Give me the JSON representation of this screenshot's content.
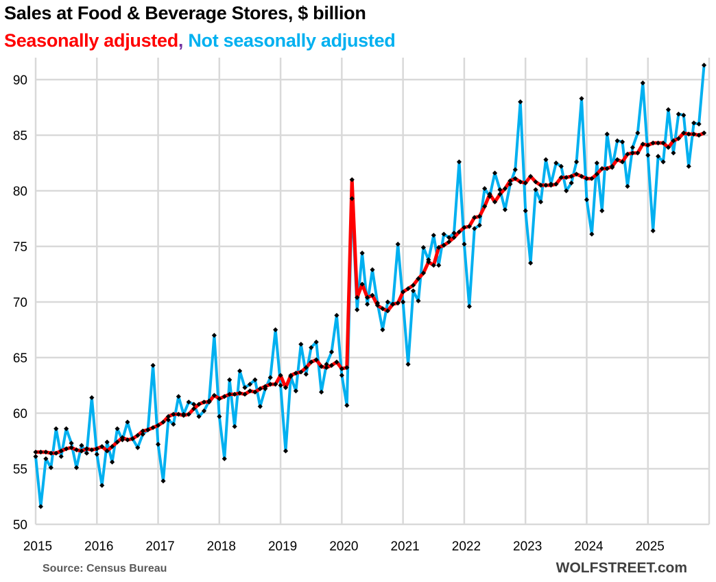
{
  "header": {
    "title": "Sales at Food & Beverage Stores, $ billion",
    "subtitle_sa": "Seasonally adjusted",
    "subtitle_comma": ",",
    "subtitle_nsa": "Not seasonally adjusted"
  },
  "footer": {
    "source": "Source: Census Bureau",
    "brand": "WOLFSTREET.com"
  },
  "colors": {
    "seasonally_adjusted": "#ff0000",
    "not_seasonally_adjusted": "#00b0f0",
    "markers": "#000000",
    "grid": "#d9d9d9"
  },
  "chart_data": {
    "type": "line",
    "title": "Sales at Food & Beverage Stores, $ billion",
    "xlabel": "",
    "ylabel": "$ billion",
    "ylim": [
      50,
      92
    ],
    "yticks": [
      50,
      55,
      60,
      65,
      70,
      75,
      80,
      85,
      90
    ],
    "xticks": [
      "2015",
      "2016",
      "2017",
      "2018",
      "2019",
      "2020",
      "2021",
      "2022",
      "2023",
      "2024",
      "2025"
    ],
    "xrange_years": [
      2015,
      2026
    ],
    "grid": true,
    "legend": "top-left (in subtitle)",
    "x_start": "2015-01",
    "frequency": "monthly",
    "series": [
      {
        "name": "Not seasonally adjusted",
        "color": "#00b0f0",
        "values": [
          56.1,
          51.6,
          55.9,
          55.1,
          58.6,
          56.1,
          58.6,
          57.3,
          55.1,
          57.1,
          56.4,
          61.4,
          56.3,
          53.5,
          57.4,
          55.6,
          58.6,
          57.6,
          59.2,
          57.7,
          56.9,
          58.1,
          58.5,
          64.3,
          57.2,
          53.9,
          59.4,
          59.0,
          61.5,
          59.9,
          61.0,
          60.8,
          59.7,
          60.2,
          61.1,
          67.0,
          59.7,
          55.9,
          63.0,
          58.8,
          63.8,
          62.3,
          62.6,
          63.0,
          60.6,
          62.2,
          63.2,
          67.5,
          62.5,
          56.6,
          63.3,
          62.0,
          66.2,
          63.5,
          65.9,
          66.4,
          61.9,
          64.4,
          65.5,
          68.8,
          63.4,
          60.7,
          79.3,
          69.3,
          74.4,
          69.8,
          72.9,
          69.9,
          67.5,
          70.0,
          69.8,
          75.2,
          70.0,
          64.4,
          71.0,
          70.1,
          74.9,
          73.8,
          76.0,
          73.3,
          76.1,
          75.8,
          76.2,
          82.6,
          75.2,
          69.6,
          76.6,
          76.9,
          80.2,
          79.5,
          81.6,
          80.1,
          78.3,
          80.6,
          81.9,
          88.0,
          78.2,
          73.5,
          80.1,
          79.0,
          82.8,
          80.6,
          82.5,
          82.2,
          80.0,
          80.7,
          82.6,
          88.3,
          79.2,
          76.1,
          82.5,
          78.2,
          85.1,
          82.1,
          84.5,
          84.4,
          80.4,
          83.9,
          85.2,
          89.7,
          83.2,
          76.4,
          83.1,
          82.6,
          87.3,
          83.4,
          86.9,
          86.8,
          82.2,
          86.1,
          86.0,
          91.3
        ]
      },
      {
        "name": "Seasonally adjusted",
        "color": "#ff0000",
        "values": [
          56.5,
          56.5,
          56.5,
          56.4,
          56.4,
          56.6,
          56.8,
          56.9,
          56.7,
          56.6,
          56.8,
          56.7,
          56.8,
          57.0,
          56.6,
          57.0,
          57.4,
          57.8,
          57.6,
          57.7,
          58.0,
          58.4,
          58.5,
          58.7,
          58.9,
          59.2,
          59.7,
          59.9,
          59.9,
          59.8,
          59.9,
          60.4,
          60.8,
          61.0,
          61.0,
          61.6,
          61.3,
          61.5,
          61.7,
          61.7,
          61.8,
          61.7,
          62.0,
          61.9,
          62.2,
          62.4,
          62.6,
          62.6,
          63.4,
          62.3,
          63.4,
          63.6,
          63.7,
          64.1,
          64.6,
          64.8,
          64.2,
          64.1,
          64.3,
          64.6,
          64.0,
          64.1,
          81.0,
          70.4,
          71.6,
          70.4,
          70.6,
          69.7,
          69.4,
          69.2,
          69.8,
          69.9,
          70.9,
          71.2,
          71.5,
          72.1,
          72.6,
          73.6,
          73.3,
          74.9,
          75.1,
          75.4,
          75.8,
          76.3,
          76.7,
          76.8,
          77.6,
          77.7,
          78.6,
          79.7,
          79.0,
          79.7,
          80.2,
          80.9,
          81.1,
          80.8,
          80.7,
          81.3,
          80.8,
          80.5,
          80.5,
          80.5,
          80.6,
          81.2,
          81.2,
          81.3,
          81.5,
          81.3,
          81.1,
          81.1,
          81.5,
          82.0,
          82.0,
          82.2,
          82.8,
          82.6,
          83.3,
          83.4,
          83.4,
          84.2,
          84.1,
          84.3,
          84.3,
          84.3,
          83.9,
          84.5,
          84.7,
          85.2,
          85.1,
          85.1,
          85.0,
          85.2
        ]
      }
    ]
  }
}
